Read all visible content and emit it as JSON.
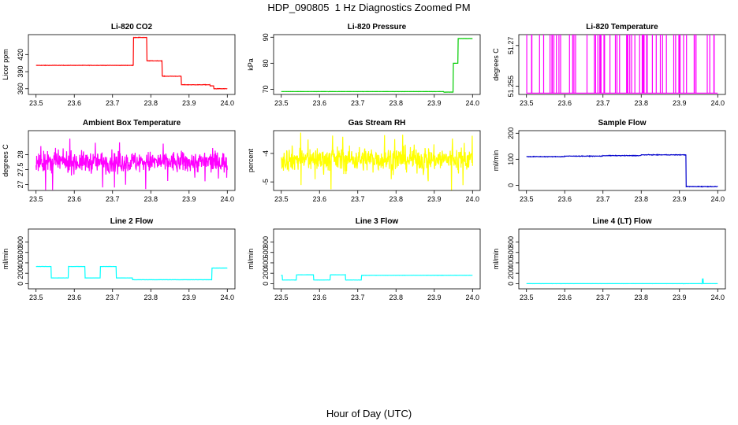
{
  "title": "HDP_090805  1 Hz Diagnostics Zoomed PM",
  "xcaption": "Hour of Day (UTC)",
  "chart_data": [
    {
      "type": "line",
      "title": "Li-820 CO2",
      "ylabel": "Licor ppm",
      "color": "#ff0000",
      "xlim": [
        23.5,
        24.0
      ],
      "xticks": [
        "23.5",
        "23.6",
        "23.7",
        "23.8",
        "23.9",
        "24.0"
      ],
      "ylim": [
        350,
        455
      ],
      "yticks": [
        360,
        390,
        420
      ],
      "steps": [
        [
          23.5,
          23.755,
          401
        ],
        [
          23.755,
          23.79,
          450
        ],
        [
          23.79,
          23.83,
          409
        ],
        [
          23.83,
          23.88,
          382
        ],
        [
          23.88,
          23.955,
          367
        ],
        [
          23.955,
          23.965,
          365
        ],
        [
          23.965,
          24.0,
          360
        ]
      ],
      "noise": 0.6
    },
    {
      "type": "line",
      "title": "Li-820 Pressure",
      "ylabel": "kPa",
      "color": "#00cc00",
      "xlim": [
        23.5,
        24.0
      ],
      "xticks": [
        "23.5",
        "23.6",
        "23.7",
        "23.8",
        "23.9",
        "24.0"
      ],
      "ylim": [
        68,
        91
      ],
      "yticks": [
        70,
        80,
        90
      ],
      "steps": [
        [
          23.5,
          23.925,
          69.1
        ],
        [
          23.925,
          23.95,
          68.9
        ],
        [
          23.95,
          23.962,
          80.0
        ],
        [
          23.962,
          24.0,
          89.5
        ]
      ],
      "noise": 0.05
    },
    {
      "type": "line",
      "title": "Li-820 Temperature",
      "ylabel": "degrees C",
      "color": "#ff00ff",
      "xlim": [
        23.5,
        24.0
      ],
      "xticks": [
        "23.5",
        "23.6",
        "23.7",
        "23.8",
        "23.9",
        "24.0"
      ],
      "ylim": [
        51.252,
        51.274
      ],
      "yticks": [
        51.255,
        51.27
      ],
      "base": 51.2525,
      "spike_top": 51.274,
      "spikes": "random"
    },
    {
      "type": "line",
      "title": "Ambient Box Temperature",
      "ylabel": "degrees C",
      "color": "#ff00ff",
      "xlim": [
        23.5,
        24.0
      ],
      "xticks": [
        "23.5",
        "23.6",
        "23.7",
        "23.8",
        "23.9",
        "24.0"
      ],
      "ylim": [
        26.8,
        28.8
      ],
      "yticks": [
        27.0,
        27.5,
        28.0
      ],
      "mean": 27.75,
      "noise": 0.25
    },
    {
      "type": "line",
      "title": "Gas Stream RH",
      "ylabel": "percent",
      "color": "#ffff00",
      "xlim": [
        23.5,
        24.0
      ],
      "xticks": [
        "23.5",
        "23.6",
        "23.7",
        "23.8",
        "23.9",
        "24.0"
      ],
      "ylim": [
        -5.3,
        -3.2
      ],
      "yticks": [
        -5.0,
        -4.0
      ],
      "mean": -4.2,
      "noise": 0.3
    },
    {
      "type": "line",
      "title": "Sample Flow",
      "ylabel": "ml/min",
      "color": "#0000cc",
      "xlim": [
        23.5,
        24.0
      ],
      "xticks": [
        "23.5",
        "23.6",
        "23.7",
        "23.8",
        "23.9",
        "24.0"
      ],
      "ylim": [
        -20,
        210
      ],
      "yticks": [
        0,
        100,
        200
      ],
      "steps": [
        [
          23.5,
          23.6,
          110
        ],
        [
          23.6,
          23.7,
          112
        ],
        [
          23.7,
          23.8,
          114
        ],
        [
          23.8,
          23.917,
          117
        ],
        [
          23.917,
          24.0,
          -5
        ]
      ],
      "noise": 2
    },
    {
      "type": "line",
      "title": "Line 2 Flow",
      "ylabel": "ml/min",
      "color": "#00ffff",
      "xlim": [
        23.5,
        24.0
      ],
      "xticks": [
        "23.5",
        "23.6",
        "23.7",
        "23.8",
        "23.9",
        "24.0"
      ],
      "ylim": [
        -100,
        1050
      ],
      "yticks": [
        0,
        200,
        400,
        600,
        800
      ],
      "steps": [
        [
          23.5,
          23.54,
          330
        ],
        [
          23.54,
          23.585,
          110
        ],
        [
          23.585,
          23.628,
          330
        ],
        [
          23.628,
          23.668,
          110
        ],
        [
          23.668,
          23.71,
          330
        ],
        [
          23.71,
          23.752,
          110
        ],
        [
          23.752,
          23.96,
          75
        ],
        [
          23.96,
          24.0,
          300
        ]
      ],
      "noise": 3
    },
    {
      "type": "line",
      "title": "Line 3 Flow",
      "ylabel": "ml/min",
      "color": "#00ffff",
      "xlim": [
        23.5,
        24.0
      ],
      "xticks": [
        "23.5",
        "23.6",
        "23.7",
        "23.8",
        "23.9",
        "24.0"
      ],
      "ylim": [
        -100,
        1050
      ],
      "yticks": [
        0,
        200,
        400,
        600,
        800
      ],
      "steps": [
        [
          23.5,
          23.503,
          160
        ],
        [
          23.503,
          23.54,
          70
        ],
        [
          23.54,
          23.585,
          170
        ],
        [
          23.585,
          23.628,
          70
        ],
        [
          23.628,
          23.668,
          170
        ],
        [
          23.668,
          23.71,
          70
        ],
        [
          23.71,
          24.0,
          160
        ]
      ],
      "noise": 3
    },
    {
      "type": "line",
      "title": "Line 4 (LT) Flow",
      "ylabel": "ml/min",
      "color": "#00ffff",
      "xlim": [
        23.5,
        24.0
      ],
      "xticks": [
        "23.5",
        "23.6",
        "23.7",
        "23.8",
        "23.9",
        "24.0"
      ],
      "ylim": [
        -100,
        1050
      ],
      "yticks": [
        0,
        200,
        400,
        600,
        800
      ],
      "steps": [
        [
          23.5,
          23.96,
          0
        ],
        [
          23.96,
          23.962,
          90
        ],
        [
          23.962,
          24.0,
          0
        ]
      ],
      "noise": 2
    }
  ]
}
